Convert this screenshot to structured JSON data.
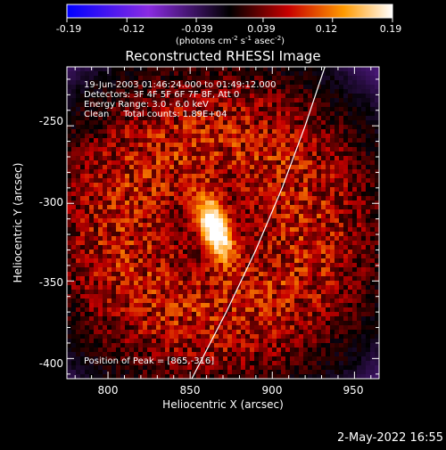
{
  "chart_data": {
    "type": "heatmap",
    "title": "Reconstructed RHESSI Image",
    "xlabel": "Heliocentric X (arcsec)",
    "ylabel": "Heliocentric Y (arcsec)",
    "xlim": [
      775,
      965
    ],
    "ylim": [
      -413,
      -212
    ],
    "x_ticks": [
      800,
      850,
      900,
      950
    ],
    "y_ticks": [
      -250,
      -300,
      -350,
      -400
    ],
    "colorbar": {
      "range": [
        -0.19,
        0.19
      ],
      "ticks": [
        "-0.19",
        "-0.12",
        "-0.039",
        "0.039",
        "0.12",
        "0.19"
      ],
      "unit_prefix": "(photons cm",
      "unit_exp1": "-2",
      "unit_mid": " s",
      "unit_exp2": "-1",
      "unit_mid2": " asec",
      "unit_exp3": "-2",
      "unit_suffix": ")"
    },
    "annotations": [
      "19-Jun-2003 01:46:24.000 to 01:49:12.000",
      "Detectors: 3F 4F 5F 6F 7F 8F, Att 0",
      "Energy Range: 3.0 - 6.0 keV",
      "Clean     Total counts: 1.89E+04"
    ],
    "peak_label": "Position of Peak = [865,-316]",
    "peak": {
      "x": 865,
      "y": -316,
      "value": 0.19
    },
    "limb_curve": [
      [
        851,
        -413
      ],
      [
        872,
        -370
      ],
      [
        890,
        -330
      ],
      [
        906,
        -290
      ],
      [
        920,
        -250
      ],
      [
        932,
        -212
      ]
    ],
    "footer_date": "2-May-2022 16:55"
  }
}
